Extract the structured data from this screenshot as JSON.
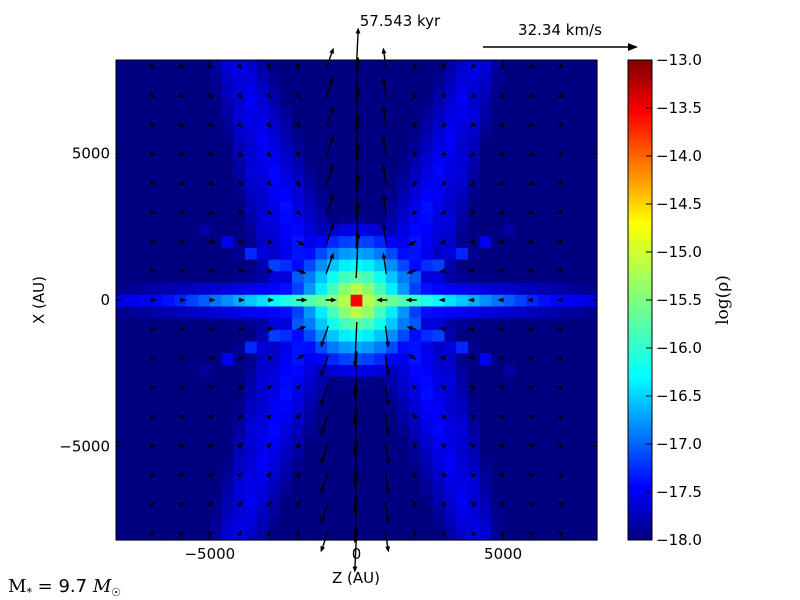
{
  "time_label": "57.543 kyr",
  "velocity_label": "32.34 km/s",
  "mass_label": "M_* = 9.7 M_☉",
  "mass": {
    "symbol": "M",
    "sub": "*",
    "eq": " = ",
    "value": "9.7",
    "unit": "M",
    "unit_sub": "☉"
  },
  "colors": {
    "low": "#00007f",
    "high": "#7f0000"
  },
  "chart_data": {
    "type": "heatmap",
    "title": "",
    "xlabel": "Z (AU)",
    "ylabel": "X (AU)",
    "xlim": [
      -8200,
      8200
    ],
    "ylim": [
      -8200,
      8200
    ],
    "x_ticks": [
      -5000,
      0,
      5000
    ],
    "y_ticks": [
      -5000,
      0,
      5000
    ],
    "x_tick_labels": [
      "−5000",
      "0",
      "5000"
    ],
    "y_tick_labels": [
      "−5000",
      "0",
      "5000"
    ],
    "colorbar": {
      "label": "log(ρ)",
      "min": -18.0,
      "max": -13.0,
      "ticks": [
        -18.0,
        -17.5,
        -17.0,
        -16.5,
        -16.0,
        -15.5,
        -15.0,
        -14.5,
        -14.0,
        -13.5,
        -13.0
      ],
      "tick_labels": [
        "−18.0",
        "−17.5",
        "−17.0",
        "−16.5",
        "−16.0",
        "−15.5",
        "−15.0",
        "−14.5",
        "−14.0",
        "−13.5",
        "−13.0"
      ]
    },
    "reference_vector_kms": 32.34,
    "quiver_spacing_au": 1000
  }
}
